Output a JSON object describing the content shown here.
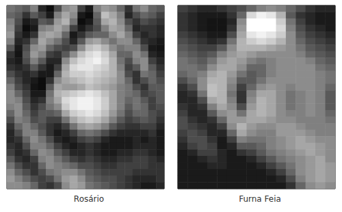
{
  "chart_data": [
    {
      "type": "heatmap",
      "title": "Rosário",
      "tick_labels": false,
      "grid": false,
      "cell_range": [
        0,
        1
      ],
      "colors": [
        "#000000",
        "#ffffff"
      ],
      "cells": [
        [
          0.45,
          0.4,
          0.35,
          0.5,
          0.15,
          0.05,
          0.3,
          0.55,
          0.6,
          0.25,
          0.1,
          0.5,
          0.6,
          0.55,
          0.4,
          0.2,
          0.45,
          0.55,
          0.4,
          0.35
        ],
        [
          0.4,
          0.35,
          0.2,
          0.35,
          0.25,
          0.1,
          0.5,
          0.65,
          0.55,
          0.1,
          0.05,
          0.4,
          0.75,
          0.65,
          0.5,
          0.15,
          0.3,
          0.4,
          0.35,
          0.25
        ],
        [
          0.5,
          0.3,
          0.1,
          0.15,
          0.35,
          0.3,
          0.6,
          0.7,
          0.45,
          0.05,
          0.1,
          0.35,
          0.65,
          0.7,
          0.55,
          0.3,
          0.2,
          0.3,
          0.25,
          0.2
        ],
        [
          0.55,
          0.25,
          0.05,
          0.1,
          0.5,
          0.55,
          0.65,
          0.55,
          0.25,
          0.1,
          0.2,
          0.3,
          0.5,
          0.65,
          0.6,
          0.4,
          0.15,
          0.2,
          0.2,
          0.15
        ],
        [
          0.6,
          0.2,
          0.1,
          0.2,
          0.6,
          0.65,
          0.6,
          0.4,
          0.1,
          0.2,
          0.35,
          0.4,
          0.4,
          0.55,
          0.65,
          0.5,
          0.25,
          0.15,
          0.2,
          0.15
        ],
        [
          0.5,
          0.15,
          0.2,
          0.4,
          0.65,
          0.55,
          0.45,
          0.3,
          0.15,
          0.35,
          0.6,
          0.65,
          0.55,
          0.45,
          0.55,
          0.55,
          0.4,
          0.2,
          0.15,
          0.1
        ],
        [
          0.35,
          0.1,
          0.3,
          0.55,
          0.6,
          0.4,
          0.3,
          0.25,
          0.3,
          0.55,
          0.75,
          0.8,
          0.7,
          0.55,
          0.45,
          0.5,
          0.5,
          0.3,
          0.1,
          0.08
        ],
        [
          0.2,
          0.08,
          0.35,
          0.6,
          0.5,
          0.25,
          0.2,
          0.35,
          0.55,
          0.75,
          0.85,
          0.9,
          0.8,
          0.65,
          0.4,
          0.4,
          0.55,
          0.45,
          0.15,
          0.1
        ],
        [
          0.15,
          0.1,
          0.3,
          0.5,
          0.35,
          0.15,
          0.15,
          0.55,
          0.75,
          0.85,
          0.9,
          0.95,
          0.85,
          0.7,
          0.45,
          0.3,
          0.5,
          0.55,
          0.25,
          0.15
        ],
        [
          0.2,
          0.15,
          0.2,
          0.35,
          0.2,
          0.1,
          0.25,
          0.65,
          0.85,
          0.9,
          0.9,
          0.85,
          0.8,
          0.7,
          0.5,
          0.25,
          0.35,
          0.55,
          0.35,
          0.2
        ],
        [
          0.3,
          0.2,
          0.15,
          0.2,
          0.1,
          0.1,
          0.4,
          0.7,
          0.8,
          0.8,
          0.85,
          0.8,
          0.75,
          0.7,
          0.55,
          0.3,
          0.2,
          0.45,
          0.4,
          0.25
        ],
        [
          0.4,
          0.25,
          0.15,
          0.1,
          0.05,
          0.2,
          0.55,
          0.65,
          0.7,
          0.75,
          0.8,
          0.75,
          0.7,
          0.65,
          0.55,
          0.4,
          0.2,
          0.3,
          0.4,
          0.3
        ],
        [
          0.5,
          0.3,
          0.2,
          0.08,
          0.05,
          0.35,
          0.65,
          0.6,
          0.6,
          0.65,
          0.75,
          0.7,
          0.65,
          0.6,
          0.5,
          0.45,
          0.3,
          0.2,
          0.35,
          0.35
        ],
        [
          0.55,
          0.4,
          0.25,
          0.1,
          0.1,
          0.45,
          0.7,
          0.75,
          0.8,
          0.85,
          0.9,
          0.85,
          0.75,
          0.65,
          0.5,
          0.45,
          0.4,
          0.25,
          0.3,
          0.35
        ],
        [
          0.55,
          0.5,
          0.3,
          0.15,
          0.2,
          0.5,
          0.65,
          0.85,
          0.9,
          0.95,
          0.95,
          0.9,
          0.8,
          0.65,
          0.5,
          0.4,
          0.45,
          0.35,
          0.25,
          0.35
        ],
        [
          0.5,
          0.55,
          0.35,
          0.2,
          0.3,
          0.45,
          0.55,
          0.8,
          0.9,
          0.95,
          0.95,
          0.9,
          0.8,
          0.65,
          0.5,
          0.35,
          0.45,
          0.4,
          0.25,
          0.3
        ],
        [
          0.4,
          0.55,
          0.4,
          0.25,
          0.35,
          0.35,
          0.4,
          0.65,
          0.8,
          0.85,
          0.9,
          0.85,
          0.75,
          0.6,
          0.45,
          0.3,
          0.4,
          0.4,
          0.3,
          0.25
        ],
        [
          0.3,
          0.5,
          0.45,
          0.3,
          0.35,
          0.25,
          0.25,
          0.45,
          0.65,
          0.75,
          0.8,
          0.75,
          0.65,
          0.5,
          0.35,
          0.25,
          0.3,
          0.35,
          0.3,
          0.2
        ],
        [
          0.2,
          0.4,
          0.5,
          0.4,
          0.3,
          0.2,
          0.15,
          0.25,
          0.45,
          0.6,
          0.65,
          0.6,
          0.5,
          0.35,
          0.25,
          0.2,
          0.2,
          0.25,
          0.25,
          0.15
        ],
        [
          0.15,
          0.3,
          0.5,
          0.5,
          0.35,
          0.2,
          0.1,
          0.15,
          0.25,
          0.4,
          0.45,
          0.4,
          0.3,
          0.2,
          0.15,
          0.15,
          0.15,
          0.15,
          0.2,
          0.1
        ],
        [
          0.15,
          0.2,
          0.4,
          0.55,
          0.45,
          0.3,
          0.15,
          0.1,
          0.15,
          0.25,
          0.3,
          0.25,
          0.15,
          0.1,
          0.1,
          0.1,
          0.15,
          0.1,
          0.15,
          0.1
        ],
        [
          0.2,
          0.15,
          0.3,
          0.5,
          0.5,
          0.4,
          0.25,
          0.15,
          0.1,
          0.15,
          0.2,
          0.15,
          0.1,
          0.1,
          0.1,
          0.1,
          0.15,
          0.15,
          0.15,
          0.1
        ],
        [
          0.25,
          0.15,
          0.2,
          0.4,
          0.55,
          0.5,
          0.35,
          0.25,
          0.15,
          0.15,
          0.2,
          0.15,
          0.1,
          0.1,
          0.15,
          0.15,
          0.2,
          0.2,
          0.15,
          0.1
        ],
        [
          0.35,
          0.2,
          0.15,
          0.25,
          0.5,
          0.55,
          0.45,
          0.35,
          0.25,
          0.2,
          0.25,
          0.2,
          0.15,
          0.15,
          0.2,
          0.2,
          0.25,
          0.25,
          0.2,
          0.15
        ],
        [
          0.45,
          0.3,
          0.2,
          0.2,
          0.4,
          0.55,
          0.5,
          0.45,
          0.4,
          0.3,
          0.3,
          0.25,
          0.2,
          0.2,
          0.25,
          0.25,
          0.25,
          0.25,
          0.2,
          0.2
        ],
        [
          0.55,
          0.4,
          0.3,
          0.2,
          0.3,
          0.45,
          0.5,
          0.55,
          0.55,
          0.45,
          0.35,
          0.3,
          0.25,
          0.25,
          0.25,
          0.25,
          0.2,
          0.2,
          0.2,
          0.2
        ],
        [
          0.6,
          0.5,
          0.4,
          0.3,
          0.25,
          0.3,
          0.45,
          0.6,
          0.65,
          0.55,
          0.4,
          0.35,
          0.3,
          0.3,
          0.25,
          0.2,
          0.15,
          0.15,
          0.15,
          0.2
        ],
        [
          0.55,
          0.55,
          0.5,
          0.4,
          0.25,
          0.2,
          0.3,
          0.55,
          0.65,
          0.6,
          0.45,
          0.4,
          0.35,
          0.3,
          0.25,
          0.2,
          0.15,
          0.1,
          0.1,
          0.15
        ]
      ]
    },
    {
      "type": "heatmap",
      "title": "Furna Feia",
      "tick_labels": false,
      "grid": false,
      "cell_range": [
        0,
        1
      ],
      "colors": [
        "#000000",
        "#ffffff"
      ],
      "cells": [
        [
          0.25,
          0.2,
          0.15,
          0.15,
          0.2,
          0.25,
          0.3,
          0.4,
          0.5,
          0.55,
          0.5,
          0.4,
          0.3,
          0.2,
          0.15,
          0.15
        ],
        [
          0.2,
          0.15,
          0.1,
          0.1,
          0.1,
          0.2,
          0.4,
          0.85,
          0.95,
          0.9,
          0.7,
          0.35,
          0.2,
          0.15,
          0.1,
          0.1
        ],
        [
          0.2,
          0.15,
          0.1,
          0.08,
          0.08,
          0.15,
          0.55,
          1.0,
          1.0,
          1.0,
          0.8,
          0.45,
          0.25,
          0.15,
          0.1,
          0.1
        ],
        [
          0.2,
          0.15,
          0.1,
          0.08,
          0.08,
          0.2,
          0.6,
          1.0,
          1.0,
          1.0,
          0.85,
          0.5,
          0.3,
          0.2,
          0.15,
          0.1
        ],
        [
          0.25,
          0.2,
          0.15,
          0.1,
          0.1,
          0.3,
          0.65,
          0.9,
          0.95,
          0.9,
          0.8,
          0.55,
          0.35,
          0.25,
          0.2,
          0.15
        ],
        [
          0.3,
          0.25,
          0.2,
          0.15,
          0.2,
          0.45,
          0.7,
          0.8,
          0.85,
          0.8,
          0.7,
          0.55,
          0.4,
          0.3,
          0.25,
          0.2
        ],
        [
          0.35,
          0.3,
          0.25,
          0.25,
          0.35,
          0.55,
          0.7,
          0.7,
          0.7,
          0.65,
          0.6,
          0.55,
          0.45,
          0.35,
          0.3,
          0.25
        ],
        [
          0.4,
          0.35,
          0.3,
          0.35,
          0.5,
          0.6,
          0.65,
          0.6,
          0.55,
          0.55,
          0.55,
          0.55,
          0.5,
          0.4,
          0.35,
          0.3
        ],
        [
          0.45,
          0.4,
          0.35,
          0.45,
          0.6,
          0.65,
          0.6,
          0.5,
          0.45,
          0.5,
          0.55,
          0.55,
          0.55,
          0.5,
          0.4,
          0.35
        ],
        [
          0.45,
          0.45,
          0.4,
          0.55,
          0.65,
          0.65,
          0.55,
          0.4,
          0.4,
          0.5,
          0.55,
          0.55,
          0.55,
          0.55,
          0.45,
          0.4
        ],
        [
          0.4,
          0.45,
          0.5,
          0.65,
          0.7,
          0.6,
          0.45,
          0.35,
          0.4,
          0.5,
          0.55,
          0.55,
          0.55,
          0.55,
          0.5,
          0.45
        ],
        [
          0.3,
          0.4,
          0.55,
          0.7,
          0.7,
          0.55,
          0.35,
          0.35,
          0.45,
          0.55,
          0.55,
          0.55,
          0.55,
          0.55,
          0.5,
          0.45
        ],
        [
          0.2,
          0.3,
          0.55,
          0.75,
          0.7,
          0.5,
          0.25,
          0.4,
          0.55,
          0.6,
          0.55,
          0.5,
          0.55,
          0.55,
          0.5,
          0.4
        ],
        [
          0.15,
          0.2,
          0.45,
          0.75,
          0.7,
          0.45,
          0.2,
          0.5,
          0.65,
          0.65,
          0.55,
          0.45,
          0.5,
          0.55,
          0.5,
          0.35
        ],
        [
          0.15,
          0.15,
          0.3,
          0.65,
          0.7,
          0.5,
          0.2,
          0.55,
          0.7,
          0.65,
          0.55,
          0.45,
          0.5,
          0.55,
          0.5,
          0.35
        ],
        [
          0.2,
          0.15,
          0.2,
          0.5,
          0.65,
          0.55,
          0.3,
          0.6,
          0.7,
          0.65,
          0.55,
          0.45,
          0.5,
          0.55,
          0.5,
          0.35
        ],
        [
          0.25,
          0.15,
          0.15,
          0.35,
          0.55,
          0.6,
          0.45,
          0.65,
          0.7,
          0.65,
          0.55,
          0.5,
          0.5,
          0.55,
          0.5,
          0.4
        ],
        [
          0.3,
          0.2,
          0.15,
          0.2,
          0.4,
          0.6,
          0.6,
          0.65,
          0.65,
          0.6,
          0.55,
          0.55,
          0.5,
          0.5,
          0.5,
          0.45
        ],
        [
          0.3,
          0.25,
          0.2,
          0.15,
          0.25,
          0.55,
          0.7,
          0.6,
          0.55,
          0.55,
          0.6,
          0.6,
          0.55,
          0.5,
          0.5,
          0.5
        ],
        [
          0.25,
          0.3,
          0.25,
          0.15,
          0.15,
          0.4,
          0.65,
          0.55,
          0.5,
          0.5,
          0.6,
          0.6,
          0.6,
          0.55,
          0.5,
          0.5
        ],
        [
          0.2,
          0.3,
          0.3,
          0.2,
          0.1,
          0.25,
          0.5,
          0.45,
          0.45,
          0.5,
          0.55,
          0.6,
          0.65,
          0.6,
          0.55,
          0.55
        ],
        [
          0.15,
          0.25,
          0.3,
          0.25,
          0.1,
          0.15,
          0.35,
          0.35,
          0.4,
          0.5,
          0.55,
          0.6,
          0.65,
          0.65,
          0.6,
          0.55
        ],
        [
          0.1,
          0.15,
          0.25,
          0.25,
          0.15,
          0.1,
          0.2,
          0.25,
          0.35,
          0.45,
          0.5,
          0.55,
          0.6,
          0.65,
          0.6,
          0.55
        ],
        [
          0.1,
          0.1,
          0.15,
          0.2,
          0.15,
          0.1,
          0.1,
          0.15,
          0.25,
          0.35,
          0.45,
          0.5,
          0.55,
          0.6,
          0.65,
          0.55
        ],
        [
          0.1,
          0.1,
          0.1,
          0.15,
          0.15,
          0.1,
          0.1,
          0.1,
          0.15,
          0.25,
          0.35,
          0.45,
          0.55,
          0.6,
          0.65,
          0.6
        ],
        [
          0.1,
          0.1,
          0.1,
          0.1,
          0.1,
          0.1,
          0.1,
          0.1,
          0.1,
          0.15,
          0.25,
          0.4,
          0.55,
          0.6,
          0.65,
          0.6
        ],
        [
          0.1,
          0.1,
          0.1,
          0.1,
          0.1,
          0.1,
          0.1,
          0.1,
          0.1,
          0.1,
          0.15,
          0.3,
          0.5,
          0.6,
          0.65,
          0.6
        ],
        [
          0.1,
          0.1,
          0.1,
          0.1,
          0.1,
          0.1,
          0.1,
          0.1,
          0.1,
          0.1,
          0.1,
          0.2,
          0.4,
          0.55,
          0.6,
          0.55
        ]
      ]
    }
  ]
}
